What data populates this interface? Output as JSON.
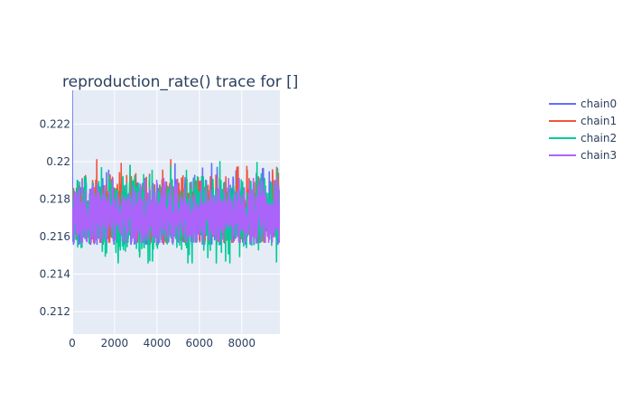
{
  "chart_data": {
    "type": "line",
    "title": "reproduction_rate() trace for []",
    "xlabel": "",
    "ylabel": "",
    "x_range": [
      0,
      9800
    ],
    "y_range": [
      0.2108,
      0.2238
    ],
    "x_ticks": [
      0,
      2000,
      4000,
      6000,
      8000
    ],
    "x_tick_labels": [
      "0",
      "2000",
      "4000",
      "6000",
      "8000"
    ],
    "y_ticks": [
      0.212,
      0.214,
      0.216,
      0.218,
      0.22,
      0.222
    ],
    "y_tick_labels": [
      "0.212",
      "0.214",
      "0.216",
      "0.218",
      "0.22",
      "0.222"
    ],
    "grid": true,
    "legend_position": "top-right",
    "n_samples": 10000,
    "series": [
      {
        "name": "chain0",
        "color": "#636efa",
        "mean": 0.2172,
        "spread": 0.0009,
        "min": 0.2156,
        "max": 0.2238
      },
      {
        "name": "chain1",
        "color": "#ef553b",
        "mean": 0.2174,
        "spread": 0.0009,
        "min": 0.2157,
        "max": 0.2201
      },
      {
        "name": "chain2",
        "color": "#00cc96",
        "mean": 0.2172,
        "spread": 0.001,
        "min": 0.2146,
        "max": 0.22
      },
      {
        "name": "chain3",
        "color": "#ab63fa",
        "mean": 0.2171,
        "spread": 0.0008,
        "min": 0.2157,
        "max": 0.2191
      }
    ]
  }
}
